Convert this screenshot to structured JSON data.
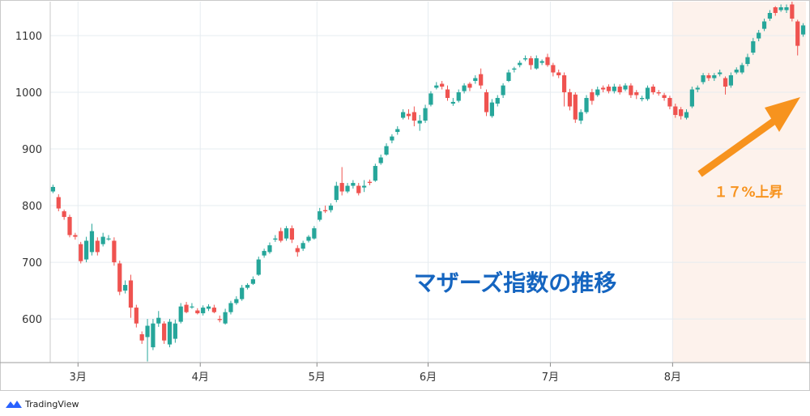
{
  "chart_data": {
    "type": "candlestick",
    "title": "マザーズ指数の推移",
    "annotation": "１７%上昇",
    "yticks": [
      600,
      700,
      800,
      900,
      1000,
      1100
    ],
    "ylim": [
      523,
      1160
    ],
    "xticks": [
      {
        "label": "3月",
        "index": 5
      },
      {
        "label": "4月",
        "index": 27
      },
      {
        "label": "5月",
        "index": 48
      },
      {
        "label": "6月",
        "index": 68
      },
      {
        "label": "7月",
        "index": 90
      },
      {
        "label": "8月",
        "index": 112
      }
    ],
    "highlight_from_index": 112,
    "colors": {
      "up": "#26a69a",
      "down": "#ef5350",
      "title": "#1565c0",
      "annotation": "#f7931e",
      "highlight": "#fdf2ec"
    },
    "candles": [
      [
        825,
        833,
        837,
        822
      ],
      [
        815,
        795,
        820,
        790
      ],
      [
        790,
        780,
        793,
        775
      ],
      [
        780,
        748,
        784,
        744
      ],
      [
        748,
        745,
        752,
        740
      ],
      [
        732,
        702,
        736,
        698
      ],
      [
        705,
        738,
        745,
        700
      ],
      [
        718,
        755,
        768,
        712
      ],
      [
        738,
        718,
        744,
        712
      ],
      [
        732,
        745,
        752,
        728
      ],
      [
        742,
        742,
        748,
        738
      ],
      [
        738,
        700,
        744,
        694
      ],
      [
        698,
        648,
        703,
        642
      ],
      [
        650,
        660,
        668,
        645
      ],
      [
        668,
        620,
        678,
        602
      ],
      [
        620,
        592,
        625,
        585
      ],
      [
        573,
        562,
        578,
        556
      ],
      [
        568,
        588,
        600,
        525
      ],
      [
        550,
        592,
        600,
        545
      ],
      [
        592,
        602,
        614,
        586
      ],
      [
        592,
        562,
        596,
        556
      ],
      [
        555,
        595,
        600,
        550
      ],
      [
        565,
        592,
        599,
        558
      ],
      [
        595,
        622,
        628,
        592
      ],
      [
        625,
        612,
        630,
        610
      ],
      [
        622,
        622,
        628,
        618
      ],
      [
        615,
        610,
        619,
        608
      ],
      [
        610,
        620,
        624,
        606
      ],
      [
        618,
        622,
        626,
        614
      ],
      [
        620,
        612,
        625,
        610
      ],
      [
        600,
        598,
        606,
        594
      ],
      [
        592,
        612,
        618,
        590
      ],
      [
        612,
        628,
        632,
        608
      ],
      [
        628,
        635,
        640,
        625
      ],
      [
        635,
        655,
        660,
        632
      ],
      [
        655,
        660,
        663,
        652
      ],
      [
        662,
        670,
        675,
        660
      ],
      [
        678,
        705,
        710,
        676
      ],
      [
        712,
        720,
        724,
        708
      ],
      [
        718,
        730,
        735,
        715
      ],
      [
        740,
        742,
        748,
        736
      ],
      [
        755,
        738,
        761,
        735
      ],
      [
        742,
        760,
        764,
        738
      ],
      [
        760,
        740,
        765,
        734
      ],
      [
        725,
        718,
        730,
        710
      ],
      [
        724,
        734,
        738,
        720
      ],
      [
        738,
        745,
        748,
        735
      ],
      [
        742,
        760,
        764,
        740
      ],
      [
        775,
        790,
        796,
        772
      ],
      [
        792,
        790,
        800,
        787
      ],
      [
        792,
        800,
        804,
        788
      ],
      [
        810,
        835,
        842,
        806
      ],
      [
        840,
        825,
        868,
        818
      ],
      [
        825,
        835,
        840,
        822
      ],
      [
        835,
        840,
        845,
        830
      ],
      [
        835,
        822,
        840,
        818
      ],
      [
        832,
        835,
        845,
        824
      ],
      [
        842,
        840,
        846,
        836
      ],
      [
        844,
        870,
        874,
        842
      ],
      [
        875,
        885,
        890,
        872
      ],
      [
        890,
        905,
        910,
        888
      ],
      [
        915,
        922,
        926,
        910
      ],
      [
        930,
        935,
        940,
        925
      ],
      [
        955,
        965,
        970,
        952
      ],
      [
        962,
        958,
        970,
        952
      ],
      [
        965,
        950,
        975,
        940
      ],
      [
        945,
        950,
        960,
        932
      ],
      [
        950,
        972,
        978,
        946
      ],
      [
        978,
        998,
        1002,
        975
      ],
      [
        1008,
        1012,
        1018,
        1005
      ],
      [
        1015,
        1010,
        1020,
        1005
      ],
      [
        1005,
        990,
        1012,
        985
      ],
      [
        980,
        983,
        990,
        976
      ],
      [
        985,
        1000,
        1005,
        982
      ],
      [
        1002,
        1012,
        1016,
        998
      ],
      [
        1015,
        1008,
        1018,
        1002
      ],
      [
        1020,
        1025,
        1030,
        1015
      ],
      [
        1032,
        1012,
        1042,
        1006
      ],
      [
        1000,
        965,
        1005,
        958
      ],
      [
        958,
        982,
        988,
        955
      ],
      [
        980,
        990,
        995,
        975
      ],
      [
        995,
        1012,
        1016,
        990
      ],
      [
        1020,
        1035,
        1040,
        1018
      ],
      [
        1040,
        1042,
        1045,
        1035
      ],
      [
        1048,
        1052,
        1056,
        1044
      ],
      [
        1058,
        1060,
        1065,
        1055
      ],
      [
        1060,
        1048,
        1064,
        1040
      ],
      [
        1042,
        1060,
        1065,
        1040
      ],
      [
        1052,
        1055,
        1058,
        1048
      ],
      [
        1062,
        1048,
        1068,
        1045
      ],
      [
        1048,
        1035,
        1052,
        1028
      ],
      [
        1035,
        1030,
        1040,
        1025
      ],
      [
        1030,
        1000,
        1035,
        975
      ],
      [
        1000,
        975,
        1006,
        968
      ],
      [
        996,
        952,
        1000,
        946
      ],
      [
        950,
        965,
        970,
        944
      ],
      [
        965,
        990,
        995,
        962
      ],
      [
        1000,
        985,
        1006,
        978
      ],
      [
        995,
        1005,
        1010,
        992
      ],
      [
        1008,
        1005,
        1012,
        1000
      ],
      [
        1010,
        1002,
        1014,
        998
      ],
      [
        1002,
        1010,
        1015,
        998
      ],
      [
        1010,
        1000,
        1014,
        996
      ],
      [
        1005,
        1012,
        1016,
        1002
      ],
      [
        1012,
        995,
        1016,
        990
      ],
      [
        1000,
        995,
        1004,
        988
      ],
      [
        988,
        990,
        994,
        984
      ],
      [
        988,
        1008,
        1012,
        985
      ],
      [
        1010,
        1000,
        1014,
        996
      ],
      [
        1000,
        998,
        1004,
        994
      ],
      [
        995,
        990,
        999,
        985
      ],
      [
        990,
        975,
        994,
        970
      ],
      [
        975,
        960,
        980,
        955
      ],
      [
        970,
        958,
        974,
        952
      ],
      [
        955,
        965,
        970,
        952
      ],
      [
        975,
        1005,
        1010,
        972
      ],
      [
        1005,
        1008,
        1012,
        1000
      ],
      [
        1018,
        1030,
        1034,
        1014
      ],
      [
        1030,
        1025,
        1034,
        1020
      ],
      [
        1025,
        1030,
        1034,
        1020
      ],
      [
        1032,
        1035,
        1040,
        1028
      ],
      [
        1025,
        1010,
        1028,
        996
      ],
      [
        1012,
        1030,
        1035,
        1008
      ],
      [
        1035,
        1040,
        1044,
        1032
      ],
      [
        1035,
        1048,
        1052,
        1032
      ],
      [
        1050,
        1062,
        1068,
        1046
      ],
      [
        1070,
        1090,
        1096,
        1066
      ],
      [
        1095,
        1105,
        1110,
        1090
      ],
      [
        1112,
        1125,
        1130,
        1108
      ],
      [
        1130,
        1140,
        1145,
        1126
      ],
      [
        1150,
        1140,
        1152,
        1135
      ],
      [
        1145,
        1150,
        1155,
        1142
      ],
      [
        1145,
        1150,
        1155,
        1140
      ],
      [
        1155,
        1130,
        1160,
        1125
      ],
      [
        1125,
        1082,
        1128,
        1065
      ],
      [
        1102,
        1118,
        1122,
        1098
      ]
    ]
  },
  "brand": {
    "name": "TradingView",
    "color": "#2962ff"
  }
}
